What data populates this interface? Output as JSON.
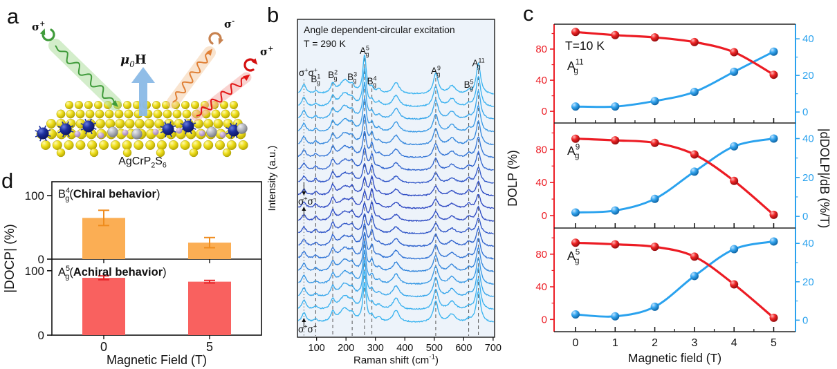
{
  "figure": {
    "panel_labels": {
      "a": "a",
      "b": "b",
      "c": "c",
      "d": "d"
    }
  },
  "illustration": {
    "compound": [
      {
        "t": "AgCrP"
      },
      {
        "t": "2",
        "sub": true
      },
      {
        "t": "S"
      },
      {
        "t": "6",
        "sub": true
      }
    ],
    "field_label": [
      {
        "t": "μ",
        "bold": true,
        "italic": true
      },
      {
        "t": "0",
        "sub": true,
        "italic": true
      },
      {
        "t": "H",
        "bold": true
      }
    ],
    "field_arrow_color": "#8ab9e6",
    "beams": [
      {
        "name": "incident-sigma-plus",
        "label": [
          {
            "t": "σ",
            "bold": true
          },
          {
            "t": "+",
            "sup": true,
            "bold": true
          }
        ],
        "wave": "#3f9b3a",
        "glow": "#a8dc96",
        "icon": "#3f9b3a"
      },
      {
        "name": "scattered-sigma-minus",
        "label": [
          {
            "t": "σ",
            "bold": true
          },
          {
            "t": "-",
            "sup": true,
            "bold": true
          }
        ],
        "wave": "#e08036",
        "glow": "#f5cba0",
        "icon": "#c8824f"
      },
      {
        "name": "scattered-sigma-plus",
        "label": [
          {
            "t": "σ",
            "bold": true
          },
          {
            "t": "+",
            "sup": true,
            "bold": true
          }
        ],
        "wave": "#e21414",
        "glow": "#f4a9a2",
        "icon": "#d40f0f"
      }
    ],
    "atom_colors": {
      "sulfur": "#f0e020",
      "chromium": "#1c2f9e",
      "silver": "#b9bcc4",
      "phosphorus": "#c9aed8"
    }
  },
  "chart_data": [
    {
      "id": "panel-b-raman-spectra",
      "type": "line",
      "title": "Angle dependent-circular excitation",
      "subtitle": "T = 290 K",
      "xlabel_parts": [
        {
          "t": "Raman shift (cm"
        },
        {
          "t": "-1",
          "sup": true
        },
        {
          "t": ")"
        }
      ],
      "ylabel": "Intensity (a.u.)",
      "xlim": [
        35,
        705
      ],
      "xticks": [
        100,
        200,
        300,
        400,
        500,
        600,
        700
      ],
      "n_curves": 19,
      "background": "#edf3fa",
      "colors": {
        "co_polarized": "#3bb4f0",
        "cross_polarized": "#2e49c3"
      },
      "pol_labels": {
        "top": [
          {
            "t": "σ"
          },
          {
            "t": "+",
            "sup": true
          },
          {
            "t": "σ"
          },
          {
            "t": "+",
            "sup": true
          }
        ],
        "middle": [
          {
            "t": "σ"
          },
          {
            "t": "+",
            "sup": true
          },
          {
            "t": "σ"
          },
          {
            "t": "-",
            "sup": true
          }
        ],
        "bottom": [
          {
            "t": "σ"
          },
          {
            "t": "+",
            "sup": true
          },
          {
            "t": "σ"
          },
          {
            "t": "+",
            "sup": true
          }
        ]
      },
      "peaks": [
        {
          "pos": 57,
          "width": 9,
          "amp_co": 14,
          "amp_cross": 9,
          "guide": "dotted"
        },
        {
          "pos": 97,
          "width": 7,
          "amp_co": 4,
          "amp_cross": 6,
          "guide": "dashed",
          "label": [
            {
              "t": "B"
            },
            {
              "t": "1",
              "sup": true
            },
            {
              "t": "g",
              "sub": true
            }
          ],
          "label_y": 119
        },
        {
          "pos": 155,
          "width": 8,
          "amp_co": 13,
          "amp_cross": 14,
          "guide": "dashed",
          "label": [
            {
              "t": "B"
            },
            {
              "t": "2",
              "sup": true
            },
            {
              "t": "g",
              "sub": true
            }
          ],
          "label_y": 113
        },
        {
          "pos": 196,
          "width": 22,
          "amp_co": 20,
          "amp_cross": 13,
          "guide": null
        },
        {
          "pos": 221,
          "width": 8,
          "amp_co": 7,
          "amp_cross": 9,
          "guide": "dashed",
          "label": [
            {
              "t": "B"
            },
            {
              "t": "3",
              "sup": true
            },
            {
              "t": "g",
              "sub": true
            }
          ],
          "label_y": 116
        },
        {
          "pos": 263,
          "width": 7,
          "amp_co": 55,
          "amp_cross": 22,
          "guide": "dashed",
          "label": [
            {
              "t": "A"
            },
            {
              "t": "5",
              "sup": true
            },
            {
              "t": "g",
              "sub": true
            }
          ],
          "label_y": 78
        },
        {
          "pos": 288,
          "width": 7,
          "amp_co": 7,
          "amp_cross": 26,
          "guide": "dashed",
          "label": [
            {
              "t": "B"
            },
            {
              "t": "4",
              "sup": true
            },
            {
              "t": "g",
              "sub": true
            }
          ],
          "label_y": 122
        },
        {
          "pos": 312,
          "width": 9,
          "amp_co": 6,
          "amp_cross": 4,
          "guide": null
        },
        {
          "pos": 370,
          "width": 13,
          "amp_co": 17,
          "amp_cross": 9,
          "guide": null
        },
        {
          "pos": 505,
          "width": 10,
          "amp_co": 30,
          "amp_cross": 13,
          "guide": "dashed",
          "label": [
            {
              "t": "A"
            },
            {
              "t": "9",
              "sup": true
            },
            {
              "t": "g",
              "sub": true
            }
          ],
          "label_y": 107
        },
        {
          "pos": 560,
          "width": 14,
          "amp_co": 12,
          "amp_cross": 7,
          "guide": null
        },
        {
          "pos": 617,
          "width": 9,
          "amp_co": 4,
          "amp_cross": 7,
          "guide": "dashed",
          "label": [
            {
              "t": "B"
            },
            {
              "t": "5",
              "sup": true
            },
            {
              "t": "g",
              "sub": true
            }
          ],
          "label_y": 127
        },
        {
          "pos": 650,
          "width": 9,
          "amp_co": 45,
          "amp_cross": 20,
          "guide": "dashed",
          "label": [
            {
              "t": "A"
            },
            {
              "t": "11",
              "sup": true
            },
            {
              "t": "g",
              "sub": true
            }
          ],
          "label_y": 96
        }
      ]
    },
    {
      "id": "panel-c-dolp",
      "type": "line",
      "annotation": "T=10 K",
      "xlabel": "Magnetic field (T)",
      "ylabel_left": "DOLP (%)",
      "ylabel_right": "|dDOLP|/dB (%/T)",
      "x": [
        0,
        1,
        2,
        3,
        4,
        5
      ],
      "xticks": [
        0,
        1,
        2,
        3,
        4,
        5
      ],
      "left_ticks": [
        0,
        40,
        80
      ],
      "left_minor_ticks": [
        20,
        60,
        100
      ],
      "right_ticks": [
        0,
        20,
        40
      ],
      "right_minor_ticks": [
        10,
        30
      ],
      "left_range": [
        -15,
        112
      ],
      "right_range": [
        -6,
        48
      ],
      "colors": {
        "dolp": "#ec1c24",
        "derivative": "#2aa2ee"
      },
      "subplots": [
        {
          "mode_label": [
            {
              "t": "A"
            },
            {
              "t": "11",
              "sup": true
            },
            {
              "t": "g",
              "sub": true
            }
          ],
          "dolp": [
            102,
            98,
            95,
            89,
            76,
            47
          ],
          "derivative": [
            3,
            3,
            6,
            11,
            22,
            33
          ]
        },
        {
          "mode_label": [
            {
              "t": "A"
            },
            {
              "t": "9",
              "sup": true
            },
            {
              "t": "g",
              "sub": true
            }
          ],
          "dolp": [
            93,
            91,
            88,
            74,
            42,
            1
          ],
          "derivative": [
            2,
            3,
            9,
            23,
            36,
            40
          ]
        },
        {
          "mode_label": [
            {
              "t": "A"
            },
            {
              "t": "5",
              "sup": true
            },
            {
              "t": "g",
              "sub": true
            }
          ],
          "dolp": [
            94,
            92,
            89,
            77,
            43,
            2
          ],
          "derivative": [
            3,
            2,
            7,
            23,
            37,
            41
          ]
        }
      ]
    },
    {
      "id": "panel-d-docp",
      "type": "bar",
      "xlabel": "Magnetic Field (T)",
      "ylabel": "|DOCP| (%)",
      "categories": [
        "0",
        "5"
      ],
      "yticks": [
        0,
        100
      ],
      "subplots": [
        {
          "label": [
            {
              "t": "B"
            },
            {
              "t": "4",
              "sup": true
            },
            {
              "t": "g",
              "sub": true
            },
            {
              "t": "("
            },
            {
              "t": "Chiral behavior",
              "bold": true
            },
            {
              "t": ")"
            }
          ],
          "values": [
            65,
            26
          ],
          "errors": [
            12,
            8
          ],
          "bar_color": "#fbae54",
          "error_color": "#ef8c1d"
        },
        {
          "label": [
            {
              "t": "A"
            },
            {
              "t": "5",
              "sup": true
            },
            {
              "t": "g",
              "sub": true
            },
            {
              "t": "("
            },
            {
              "t": "Achiral behavior",
              "bold": true
            },
            {
              "t": ")"
            }
          ],
          "values": [
            89,
            83
          ],
          "errors": [
            3,
            2
          ],
          "bar_color": "#f9615f",
          "error_color": "#e8262b"
        }
      ]
    }
  ]
}
